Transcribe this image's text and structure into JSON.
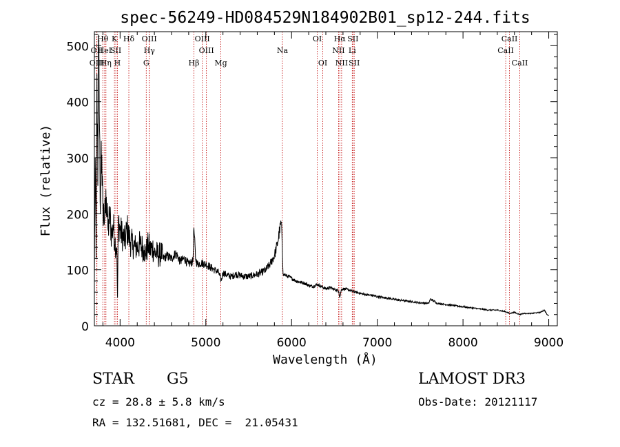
{
  "chart_data": {
    "type": "line",
    "title": "spec-56249-HD084529N184902B01_sp12-244.fits",
    "xlabel": "Wavelength (Å)",
    "ylabel": "Flux (relative)",
    "xlim": [
      3700,
      9100
    ],
    "ylim": [
      0,
      525
    ],
    "xticks": [
      4000,
      5000,
      6000,
      7000,
      8000,
      9000
    ],
    "yticks": [
      0,
      100,
      200,
      300,
      400,
      500
    ],
    "series": [
      {
        "name": "flux",
        "x": [
          3700,
          3710,
          3720,
          3730,
          3740,
          3750,
          3760,
          3770,
          3780,
          3790,
          3800,
          3820,
          3840,
          3860,
          3880,
          3900,
          3920,
          3940,
          3960,
          3970,
          3980,
          4000,
          4030,
          4060,
          4080,
          4100,
          4120,
          4150,
          4180,
          4200,
          4230,
          4260,
          4280,
          4300,
          4330,
          4350,
          4380,
          4400,
          4420,
          4450,
          4480,
          4500,
          4550,
          4600,
          4650,
          4700,
          4750,
          4800,
          4850,
          4861,
          4880,
          4900,
          4950,
          5000,
          5050,
          5100,
          5150,
          5180,
          5200,
          5250,
          5300,
          5350,
          5400,
          5450,
          5500,
          5550,
          5600,
          5650,
          5700,
          5750,
          5800,
          5840,
          5860,
          5880,
          5890,
          5900,
          5910,
          5930,
          5960,
          6000,
          6050,
          6100,
          6150,
          6200,
          6250,
          6300,
          6350,
          6400,
          6450,
          6500,
          6550,
          6563,
          6580,
          6600,
          6650,
          6700,
          6750,
          6800,
          6850,
          6900,
          6950,
          7000,
          7100,
          7200,
          7300,
          7400,
          7500,
          7600,
          7620,
          7700,
          7800,
          7900,
          8000,
          8100,
          8200,
          8300,
          8400,
          8500,
          8542,
          8600,
          8662,
          8700,
          8800,
          8900,
          8950,
          8980,
          9000
        ],
        "values": [
          80,
          300,
          120,
          450,
          250,
          520,
          350,
          200,
          330,
          250,
          210,
          190,
          230,
          170,
          200,
          160,
          180,
          150,
          140,
          50,
          190,
          170,
          160,
          150,
          175,
          160,
          150,
          145,
          140,
          140,
          145,
          140,
          135,
          130,
          145,
          135,
          140,
          130,
          130,
          125,
          130,
          120,
          125,
          120,
          130,
          115,
          120,
          110,
          115,
          175,
          120,
          110,
          112,
          110,
          105,
          100,
          95,
          80,
          95,
          90,
          88,
          92,
          90,
          88,
          88,
          90,
          92,
          95,
          100,
          110,
          125,
          150,
          170,
          185,
          150,
          95,
          92,
          90,
          88,
          85,
          80,
          78,
          76,
          72,
          70,
          74,
          70,
          66,
          68,
          65,
          62,
          50,
          64,
          66,
          65,
          62,
          60,
          58,
          56,
          55,
          54,
          52,
          50,
          47,
          45,
          43,
          41,
          40,
          48,
          40,
          38,
          36,
          34,
          32,
          30,
          28,
          28,
          25,
          22,
          24,
          20,
          22,
          22,
          24,
          28,
          20,
          18
        ]
      }
    ],
    "lines": [
      {
        "label": "OII",
        "x": 3727,
        "row": 1
      },
      {
        "label": "OIII",
        "x": 3730,
        "row": 2
      },
      {
        "label": "Hθ",
        "x": 3798,
        "row": 0
      },
      {
        "label": "HeI",
        "x": 3820,
        "row": 1
      },
      {
        "label": "Hη",
        "x": 3835,
        "row": 2
      },
      {
        "label": "K",
        "x": 3934,
        "row": 0
      },
      {
        "label": "SII",
        "x": 3950,
        "row": 1
      },
      {
        "label": "H",
        "x": 3969,
        "row": 2
      },
      {
        "label": "Hδ",
        "x": 4102,
        "row": 0
      },
      {
        "label": "OIII",
        "x": 4340,
        "row": 0
      },
      {
        "label": "Hγ",
        "x": 4341,
        "row": 1
      },
      {
        "label": "G",
        "x": 4305,
        "row": 2
      },
      {
        "label": "Hβ",
        "x": 4861,
        "row": 2
      },
      {
        "label": "OIII",
        "x": 4959,
        "row": 0
      },
      {
        "label": "OIII",
        "x": 5007,
        "row": 1
      },
      {
        "label": "Mg",
        "x": 5175,
        "row": 2
      },
      {
        "label": "Na",
        "x": 5893,
        "row": 1
      },
      {
        "label": "OI",
        "x": 6300,
        "row": 0
      },
      {
        "label": "OI",
        "x": 6364,
        "row": 2
      },
      {
        "label": "Hα",
        "x": 6563,
        "row": 0
      },
      {
        "label": "SII",
        "x": 6716,
        "row": 0
      },
      {
        "label": "NII",
        "x": 6548,
        "row": 1
      },
      {
        "label": "Li",
        "x": 6708,
        "row": 1
      },
      {
        "label": "NII",
        "x": 6584,
        "row": 2
      },
      {
        "label": "SII",
        "x": 6731,
        "row": 2
      },
      {
        "label": "CaII",
        "x": 8498,
        "row": 1
      },
      {
        "label": "CaII",
        "x": 8542,
        "row": 0
      },
      {
        "label": "CaII",
        "x": 8662,
        "row": 2
      }
    ]
  },
  "info": {
    "class": "STAR",
    "subclass": "G5",
    "survey": "LAMOST DR3",
    "cz": "cz = 28.8 ± 5.8 km/s",
    "obsdate": "Obs-Date: 20121117",
    "coords": "RA = 132.51681, DEC =  21.05431"
  },
  "colors": {
    "axis": "#000000",
    "spectrum": "#000000",
    "marker": "#c00000"
  }
}
